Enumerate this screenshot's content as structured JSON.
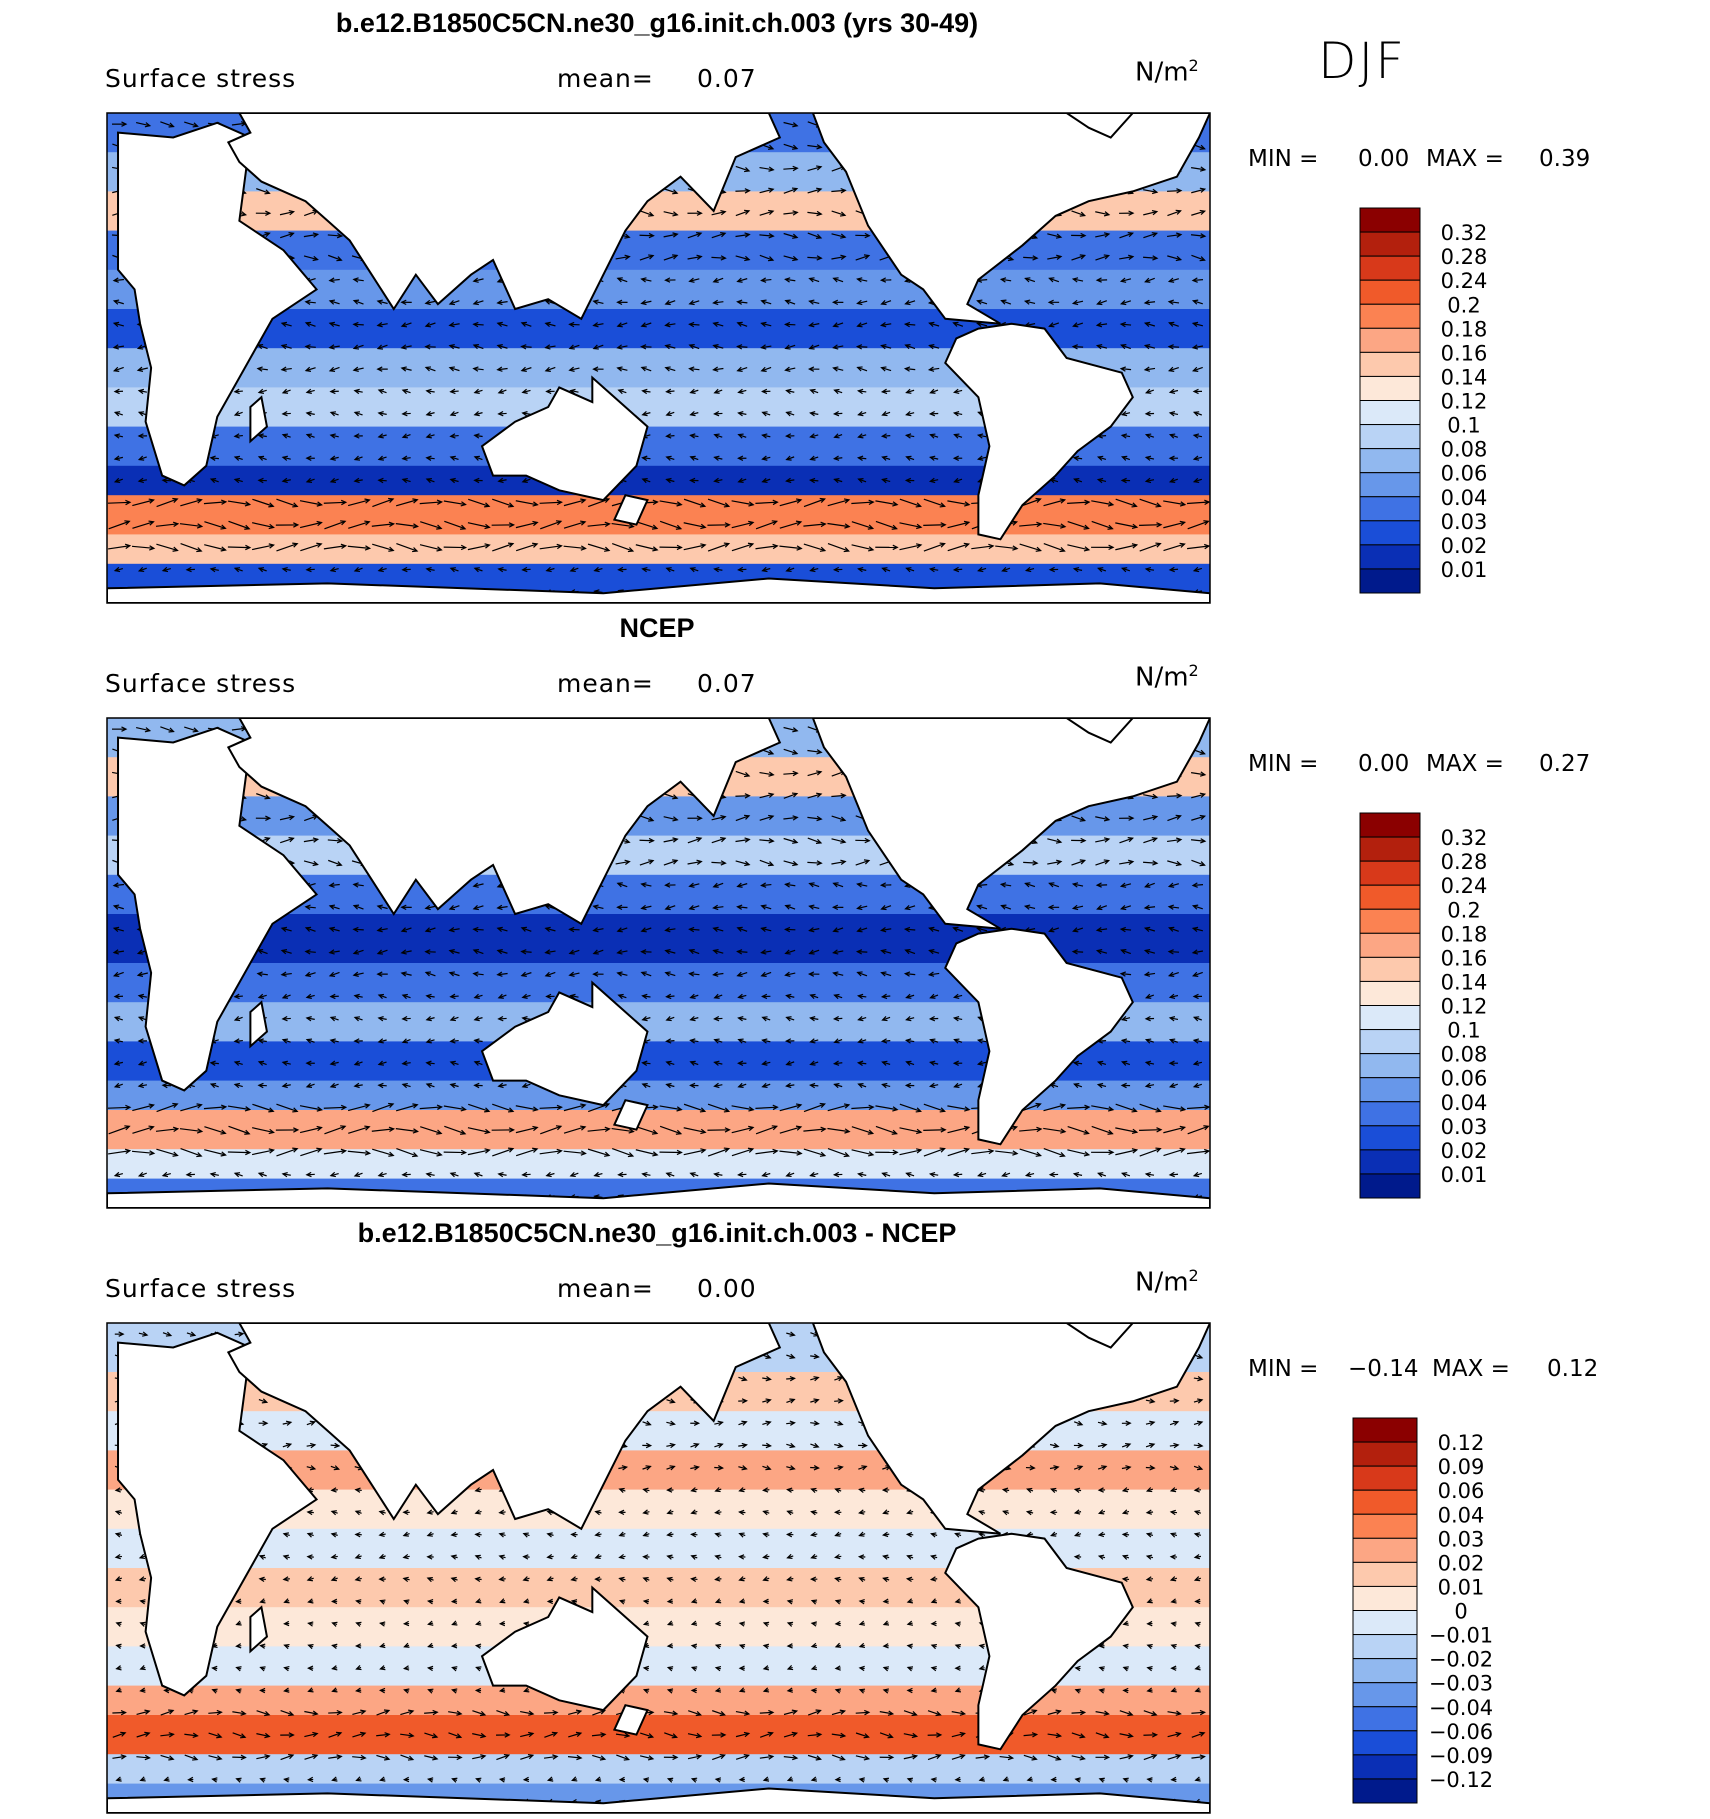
{
  "season": "DJF",
  "panels": [
    {
      "title": "b.e12.B1850C5CN.ne30_g16.init.ch.003 (yrs 30-49)",
      "variable": "Surface stress",
      "mean_label": "mean=",
      "mean_value": "0.07",
      "units": "N/m",
      "units_exp": "2",
      "min_label": "MIN =",
      "min_value": "0.00",
      "max_label": "MAX =",
      "max_value": "0.39",
      "colorbar_labels": [
        "0.32",
        "0.28",
        "0.24",
        "0.2",
        "0.18",
        "0.16",
        "0.14",
        "0.12",
        "0.1",
        "0.08",
        "0.06",
        "0.04",
        "0.03",
        "0.02",
        "0.01"
      ],
      "colorbar_colors": [
        "#8b0000",
        "#b3200d",
        "#d8391a",
        "#f05a2a",
        "#fb8252",
        "#fca684",
        "#fdc9ad",
        "#fde8d9",
        "#dbe9f9",
        "#b9d3f5",
        "#91b8ef",
        "#6797ea",
        "#3f72e4",
        "#1a4ed8",
        "#0a2fb5",
        "#001a8c"
      ]
    },
    {
      "title": "NCEP",
      "variable": "Surface stress",
      "mean_label": "mean=",
      "mean_value": "0.07",
      "units": "N/m",
      "units_exp": "2",
      "min_label": "MIN =",
      "min_value": "0.00",
      "max_label": "MAX =",
      "max_value": "0.27",
      "colorbar_labels": [
        "0.32",
        "0.28",
        "0.24",
        "0.2",
        "0.18",
        "0.16",
        "0.14",
        "0.12",
        "0.1",
        "0.08",
        "0.06",
        "0.04",
        "0.03",
        "0.02",
        "0.01"
      ],
      "colorbar_colors": [
        "#8b0000",
        "#b3200d",
        "#d8391a",
        "#f05a2a",
        "#fb8252",
        "#fca684",
        "#fdc9ad",
        "#fde8d9",
        "#dbe9f9",
        "#b9d3f5",
        "#91b8ef",
        "#6797ea",
        "#3f72e4",
        "#1a4ed8",
        "#0a2fb5",
        "#001a8c"
      ]
    },
    {
      "title": "b.e12.B1850C5CN.ne30_g16.init.ch.003 - NCEP",
      "variable": "Surface stress",
      "mean_label": "mean=",
      "mean_value": "0.00",
      "units": "N/m",
      "units_exp": "2",
      "min_label": "MIN =",
      "min_value": "−0.14",
      "max_label": "MAX =",
      "max_value": "0.12",
      "colorbar_labels": [
        "0.12",
        "0.09",
        "0.06",
        "0.04",
        "0.03",
        "0.02",
        "0.01",
        "0",
        "−0.01",
        "−0.02",
        "−0.03",
        "−0.04",
        "−0.06",
        "−0.09",
        "−0.12"
      ],
      "colorbar_colors": [
        "#8b0000",
        "#b3200d",
        "#d8391a",
        "#f05a2a",
        "#fb8252",
        "#fca684",
        "#fdc9ad",
        "#fde8d9",
        "#dbe9f9",
        "#b9d3f5",
        "#91b8ef",
        "#6797ea",
        "#3f72e4",
        "#1a4ed8",
        "#0a2fb5",
        "#001a8c"
      ]
    }
  ]
}
